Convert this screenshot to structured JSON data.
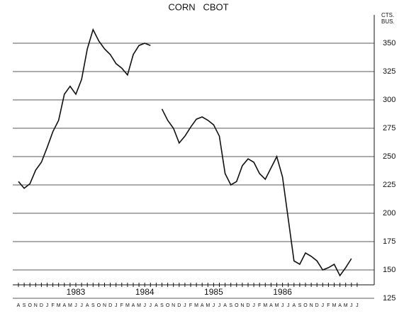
{
  "chart_data": {
    "type": "line",
    "title": "CORN   CBOT",
    "unit_label": [
      "CTS.",
      "BUS."
    ],
    "categories": [
      "A",
      "S",
      "O",
      "N",
      "D",
      "J",
      "F",
      "M",
      "A",
      "M",
      "J",
      "J",
      "A",
      "S",
      "O",
      "N",
      "D",
      "J",
      "F",
      "M",
      "A",
      "M",
      "J",
      "J",
      "A",
      "S",
      "O",
      "N",
      "D",
      "J",
      "F",
      "M",
      "A",
      "M",
      "J",
      "J",
      "A",
      "S",
      "O",
      "N",
      "D",
      "J",
      "F",
      "M",
      "A",
      "M",
      "J",
      "J",
      "A",
      "S",
      "O",
      "N",
      "D",
      "J",
      "F",
      "M",
      "A",
      "M",
      "J",
      "J"
    ],
    "year_labels": [
      "1983",
      "1984",
      "1985",
      "1986"
    ],
    "series": [
      {
        "name": "Corn",
        "color": "#111111",
        "values": [
          228,
          222,
          226,
          238,
          245,
          258,
          272,
          282,
          305,
          312,
          305,
          318,
          345,
          362,
          352,
          345,
          340,
          332,
          328,
          322,
          340,
          348,
          350,
          348,
          null,
          292,
          282,
          275,
          262,
          268,
          276,
          283,
          285,
          282,
          278,
          268,
          235,
          225,
          228,
          242,
          248,
          245,
          235,
          230,
          240,
          250,
          232,
          195,
          158,
          155,
          165,
          162,
          158,
          150,
          152,
          155,
          145,
          152,
          160,
          null
        ]
      }
    ],
    "ylim": [
      125,
      375
    ],
    "yticks": [
      125,
      150,
      175,
      200,
      225,
      250,
      275,
      300,
      325,
      350
    ],
    "grid": true
  }
}
